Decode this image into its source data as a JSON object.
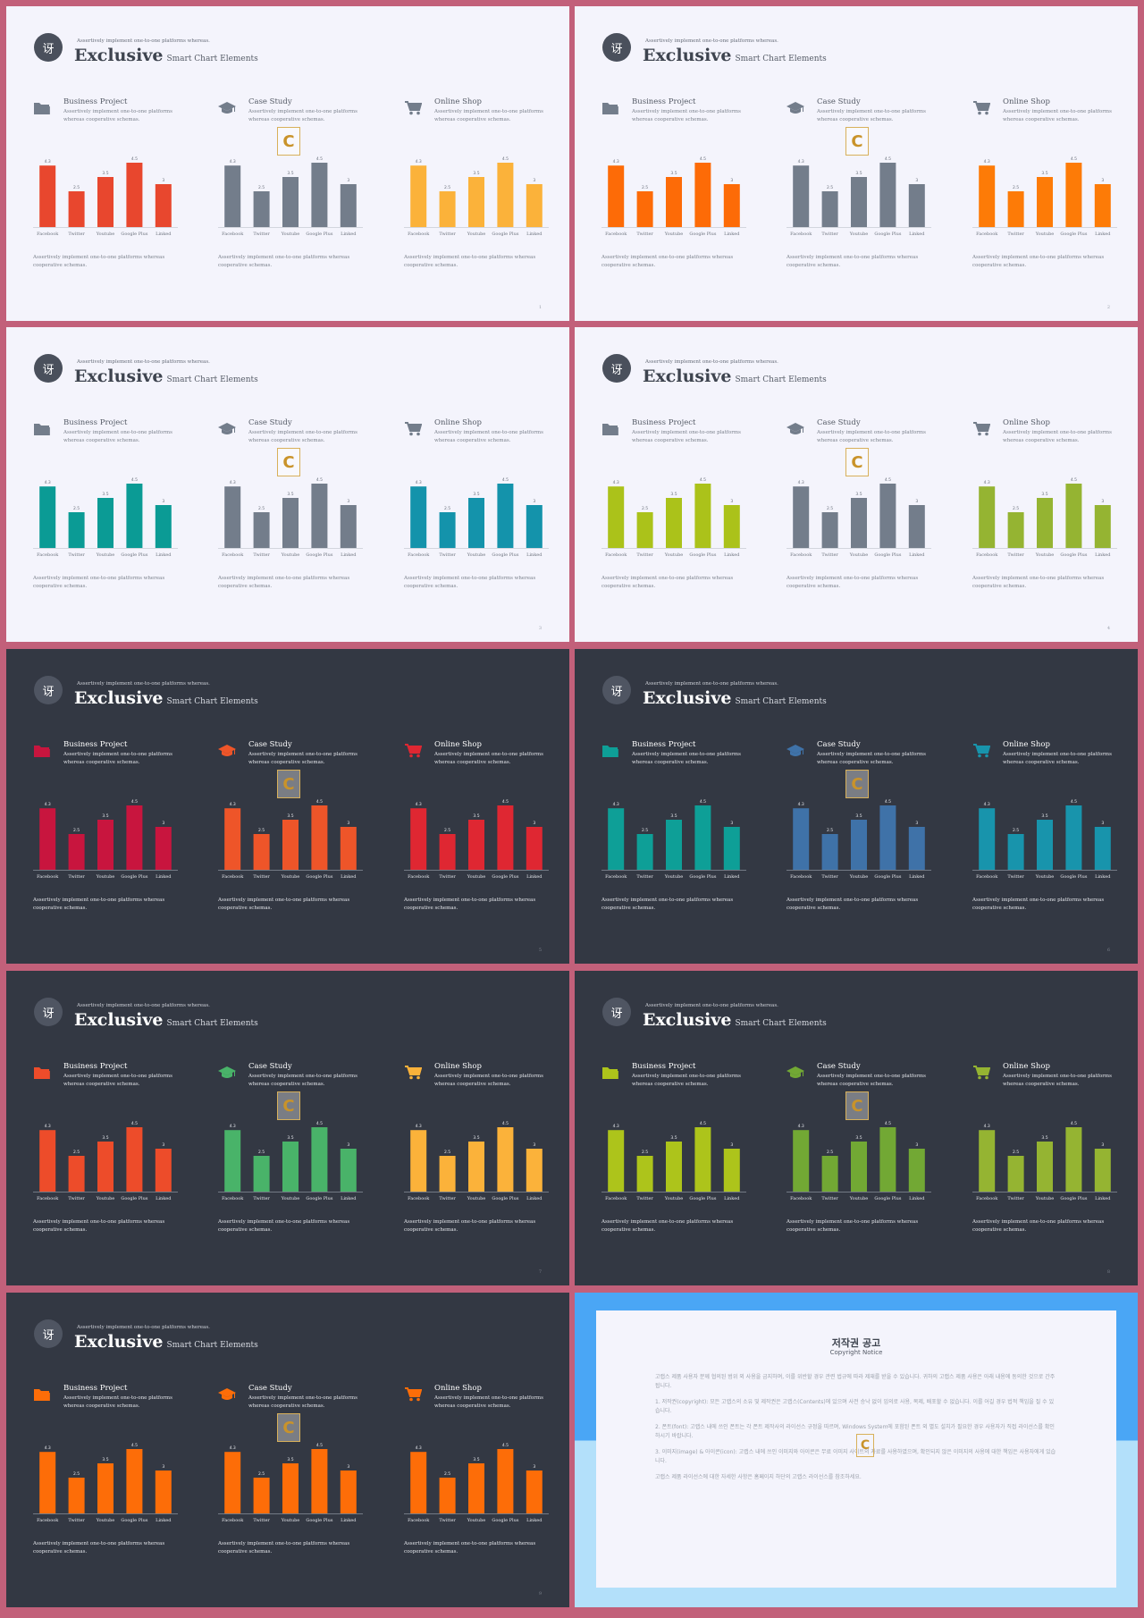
{
  "common": {
    "logo_glyph": "讶",
    "subtitle": "Assertively implement one-to-one platforms whereas.",
    "title_big": "Exclusive",
    "title_small": "Smart Chart Elements",
    "panels": [
      {
        "heading": "Business Project",
        "desc": "Assertively implement one-to-one platforms whereas cooperative schemas.",
        "icon": "folder-icon"
      },
      {
        "heading": "Case Study",
        "desc": "Assertively implement one-to-one platforms whereas cooperative schemas.",
        "icon": "graduation-cap-icon"
      },
      {
        "heading": "Online Shop",
        "desc": "Assertively implement one-to-one platforms whereas cooperative schemas.",
        "icon": "shopping-cart-icon"
      }
    ],
    "note": "Assertively implement one-to-one platforms whereas cooperative schemas.",
    "watermark_glyph": "C"
  },
  "chart_data": {
    "type": "bar",
    "categories": [
      "Facebook",
      "Twitter",
      "Youtube",
      "Google Plus",
      "Linked"
    ],
    "values": [
      4.3,
      2.5,
      3.5,
      4.5,
      3
    ],
    "ylim": [
      0,
      5
    ]
  },
  "slides": [
    {
      "theme": "light",
      "page": "1",
      "colors": [
        "#e8472e",
        "#737d8b",
        "#fbb23a"
      ]
    },
    {
      "theme": "light",
      "page": "2",
      "colors": [
        "#fd6b07",
        "#737d8b",
        "#fd7b07"
      ]
    },
    {
      "theme": "light",
      "page": "3",
      "colors": [
        "#0b9b95",
        "#737d8b",
        "#1493ab"
      ]
    },
    {
      "theme": "light",
      "page": "4",
      "colors": [
        "#abc21a",
        "#737d8b",
        "#95b432"
      ]
    },
    {
      "theme": "dark",
      "page": "5",
      "colors": [
        "#c8153e",
        "#ee5529",
        "#df2732"
      ]
    },
    {
      "theme": "dark",
      "page": "6",
      "colors": [
        "#0e9f97",
        "#3f72a8",
        "#1894ac"
      ]
    },
    {
      "theme": "dark",
      "page": "7",
      "colors": [
        "#ed4c2a",
        "#49b369",
        "#fbb23a"
      ]
    },
    {
      "theme": "dark",
      "page": "8",
      "colors": [
        "#adc41b",
        "#72a834",
        "#95b432"
      ]
    },
    {
      "theme": "dark",
      "page": "9",
      "colors": [
        "#fd6d08",
        "#fd6d08",
        "#fd6d08"
      ]
    }
  ],
  "copyright": {
    "title": "저작권 공고",
    "subtitle": "Copyright Notice",
    "paragraphs": [
      "고랩스 제품 사용자 분께 협의된 범위 외 사용을 금지하며, 이를 위반할 경우 관련 법규에 따라 제재를 받을 수 있습니다. 귀하의 고랩스 제품 사용은 아래 내용에 동의한 것으로 간주됩니다.",
      "1. 저작권(copyright): 모든 고랩스의 소유 및 제작권은 고랩스(Contents)에 있으며 사전 승낙 없이 임의로 사용, 복제, 배포할 수 없습니다. 이를 어길 경우 법적 책임을 질 수 있습니다.",
      "2. 폰트(font): 고랩스 내에 쓰인 폰트는 각 폰트 제작사의 라이선스 규정을 따르며, Windows System에 포함된 폰트 외 별도 설치가 필요한 경우 사용자가 직접 라이선스를 확인하시기 바랍니다.",
      "3. 이미지(image) & 아이콘(icon): 고랩스 내에 쓰인 이미지와 아이콘은 무료 이미지 사이트의 자료를 사용하였으며, 확인되지 않은 이미지의 사용에 대한 책임은 사용자에게 있습니다.",
      "고랩스 제품 라이선스에 대한 자세한 사항은 홈페이지 하단의 고랩스 라이선스를 참조하세요."
    ]
  }
}
